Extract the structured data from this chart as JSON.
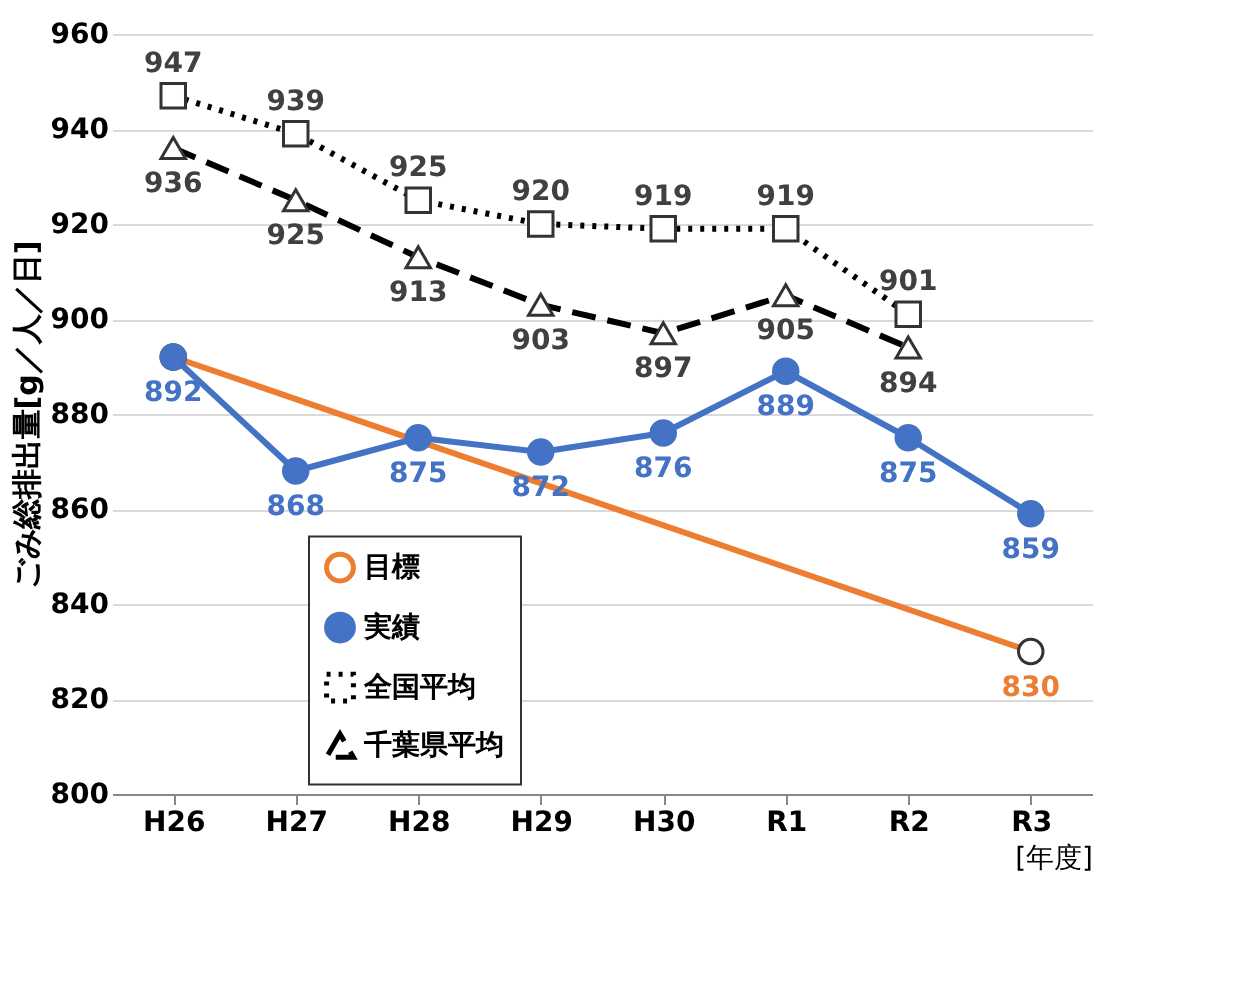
{
  "chart_data": {
    "type": "line",
    "ylabel": "ごみ総排出量[g／人／日]",
    "xlabel": "[年度]",
    "categories": [
      "H26",
      "H27",
      "H28",
      "H29",
      "H30",
      "R1",
      "R2",
      "R3"
    ],
    "ylim": [
      800,
      960
    ],
    "yticks": [
      800,
      820,
      840,
      860,
      880,
      900,
      920,
      940,
      960
    ],
    "grid": "y",
    "legend": "bottom left",
    "series": [
      {
        "name": "目標",
        "color": "#ed7d31",
        "x": [
          "H26",
          "R3"
        ],
        "values": [
          892,
          830
        ],
        "marker": "circle",
        "line_style": "solid",
        "value_labels": [
          null,
          "830"
        ]
      },
      {
        "name": "実績",
        "color": "#4472c4",
        "values": [
          892,
          868,
          875,
          872,
          876,
          889,
          875,
          859
        ],
        "marker": "circle",
        "line_style": "solid",
        "value_labels": [
          "892",
          "868",
          "875",
          "872",
          "876",
          "889",
          "875",
          "859"
        ]
      },
      {
        "name": "全国平均",
        "color": "#000000",
        "values": [
          947,
          939,
          925,
          920,
          919,
          919,
          901,
          null
        ],
        "marker": "square",
        "line_style": "dotted",
        "value_labels": [
          "947",
          "939",
          "925",
          "920",
          "919",
          "919",
          "901",
          null
        ]
      },
      {
        "name": "千葉県平均",
        "color": "#000000",
        "values": [
          936,
          925,
          913,
          903,
          897,
          905,
          894,
          null
        ],
        "marker": "triangle",
        "line_style": "dashed",
        "value_labels": [
          "936",
          "925",
          "913",
          "903",
          "897",
          "905",
          "894",
          null
        ]
      }
    ]
  }
}
